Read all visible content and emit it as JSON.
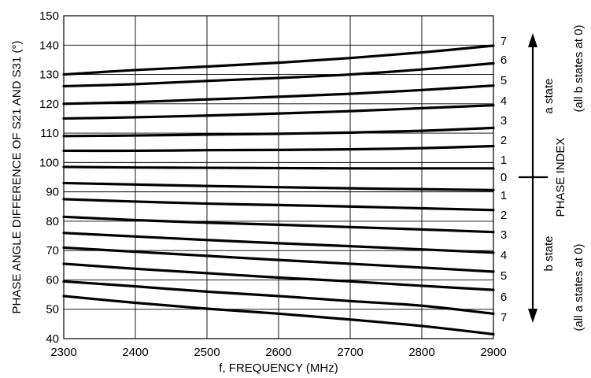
{
  "chart_data": {
    "type": "line",
    "xlabel": "f, FREQUENCY (MHz)",
    "ylabel": "PHASE ANGLE DIFFERENCE OF S21 AND S31 (°)",
    "xlim": [
      2300,
      2900
    ],
    "ylim": [
      40,
      150
    ],
    "x_ticks": [
      "2300",
      "2400",
      "2500",
      "2600",
      "2700",
      "2800",
      "2900"
    ],
    "y_ticks": [
      "40",
      "50",
      "60",
      "70",
      "80",
      "90",
      "100",
      "110",
      "120",
      "130",
      "140",
      "150"
    ],
    "grid": true,
    "x": [
      2300,
      2400,
      2500,
      2600,
      2700,
      2800,
      2900
    ],
    "series": [
      {
        "values": [
          130,
          131.5,
          132.7,
          134,
          135.6,
          137.5,
          139.8
        ]
      },
      {
        "values": [
          126,
          126.7,
          127.8,
          128.8,
          130,
          131.7,
          133.8
        ]
      },
      {
        "values": [
          120,
          120.6,
          121.5,
          122.4,
          123.4,
          124.7,
          126.2
        ]
      },
      {
        "values": [
          115,
          115.4,
          116,
          116.7,
          117.5,
          118.5,
          119.5
        ]
      },
      {
        "values": [
          109,
          109.2,
          109.5,
          109.8,
          110.2,
          110.8,
          111.8
        ]
      },
      {
        "values": [
          104,
          104,
          104.2,
          104.3,
          104.5,
          104.9,
          105.6
        ]
      },
      {
        "values": [
          98.5,
          98.3,
          98.2,
          98.1,
          98,
          98,
          98
        ]
      },
      {
        "values": [
          93,
          92.5,
          92,
          91.6,
          91.2,
          90.9,
          90.6
        ]
      },
      {
        "values": [
          87.5,
          86.7,
          86,
          85.5,
          85,
          84.4,
          83.8
        ]
      },
      {
        "values": [
          81.5,
          80.4,
          79.5,
          78.8,
          78,
          77.2,
          76.3
        ]
      },
      {
        "values": [
          76,
          74.8,
          73.6,
          72.5,
          71.5,
          70.4,
          69.3
        ]
      },
      {
        "values": [
          71,
          69.6,
          68.2,
          66.8,
          65.5,
          64.2,
          62.8
        ]
      },
      {
        "values": [
          65.5,
          63.8,
          62.3,
          60.8,
          59.5,
          58,
          56.6
        ]
      },
      {
        "values": [
          59.5,
          57.8,
          56,
          54.5,
          52.8,
          51.2,
          48.5
        ]
      },
      {
        "values": [
          54.5,
          52.2,
          50.2,
          48.5,
          46.5,
          44.3,
          41.5
        ]
      }
    ]
  },
  "phase_index": {
    "labels": [
      "7",
      "6",
      "5",
      "4",
      "3",
      "2",
      "1",
      "0",
      "1",
      "2",
      "3",
      "4",
      "5",
      "6",
      "7"
    ],
    "title": "PHASE INDEX",
    "a_state_label": "a state",
    "a_state_note": "(all b states at 0)",
    "b_state_label": "b state",
    "b_state_note": "(all a states at 0)"
  }
}
